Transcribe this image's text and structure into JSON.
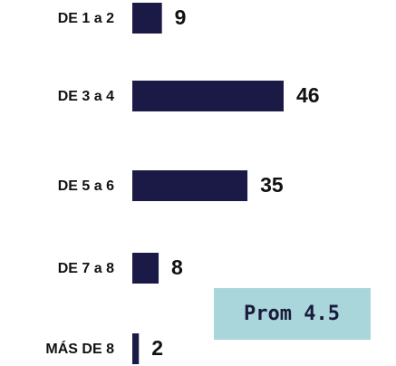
{
  "chart_data": {
    "type": "bar",
    "orientation": "horizontal",
    "categories": [
      "DE 1 a 2",
      "DE 3 a 4",
      "DE 5 a 6",
      "DE 7 a 8",
      "MÁS DE 8"
    ],
    "values": [
      9,
      46,
      35,
      8,
      2
    ],
    "color": "#1b1a47",
    "annotation": "Prom 4.5",
    "annotation_color": "#a9d6da"
  }
}
